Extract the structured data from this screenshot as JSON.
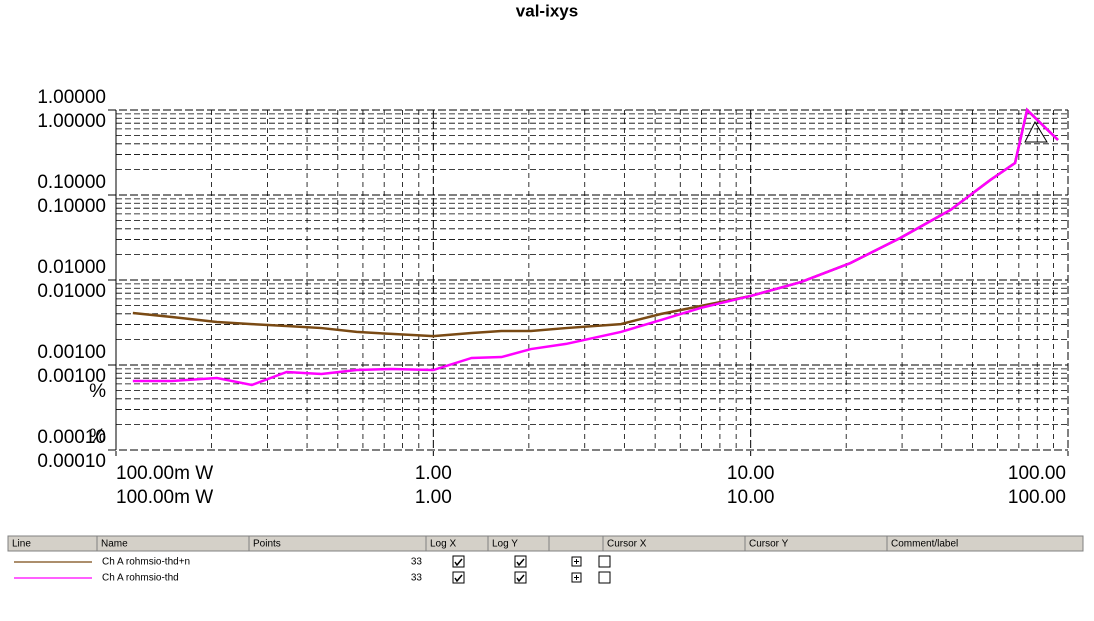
{
  "chart_data": {
    "type": "line",
    "title": "val-ixys",
    "y_unit": "%",
    "log_x": true,
    "log_y": true,
    "grid": true,
    "xlim": [
      0.1,
      100
    ],
    "ylim": [
      0.0001,
      1
    ],
    "xticks": [
      {
        "value": 0.1,
        "label": "100.00m W"
      },
      {
        "value": 1,
        "label": "1.00"
      },
      {
        "value": 10,
        "label": "10.00"
      },
      {
        "value": 100,
        "label": "100.00"
      }
    ],
    "yticks": [
      {
        "value": 1,
        "label": "1.00000"
      },
      {
        "value": 0.1,
        "label": "0.10000"
      },
      {
        "value": 0.01,
        "label": "0.01000"
      },
      {
        "value": 0.001,
        "label": "0.00100"
      },
      {
        "value": 0.0001,
        "label": "0.00010"
      }
    ],
    "x": [
      0.113,
      0.15,
      0.208,
      0.268,
      0.345,
      0.444,
      0.573,
      0.738,
      1.0,
      1.32,
      1.64,
      2.03,
      2.62,
      3.9,
      5.21,
      6.96,
      10.0,
      14.4,
      20.6,
      29.6,
      42.6,
      56.9,
      68.1,
      74.3,
      93.0
    ],
    "series": [
      {
        "name": "Ch A rohmsio-thd+n",
        "color": "#7a4a14",
        "values": [
          0.00409,
          0.00367,
          0.00321,
          0.00303,
          0.00288,
          0.00272,
          0.00245,
          0.00232,
          0.00219,
          0.00238,
          0.00251,
          0.00251,
          0.00272,
          0.00303,
          0.00398,
          0.00494,
          0.00649,
          0.00946,
          0.0158,
          0.0312,
          0.0667,
          0.15,
          0.238,
          1.0,
          0.444
        ]
      },
      {
        "name": "Ch A rohmsio-thd",
        "color": "#ff00ff",
        "values": [
          0.000649,
          0.000649,
          0.000703,
          0.000582,
          0.000828,
          0.000784,
          0.000873,
          0.000897,
          0.000873,
          0.00121,
          0.00124,
          0.00154,
          0.00177,
          0.00245,
          0.00338,
          0.00469,
          0.00649,
          0.00946,
          0.0158,
          0.0312,
          0.0667,
          0.15,
          0.238,
          1.0,
          0.444
        ]
      }
    ]
  },
  "legend_table": {
    "headers": [
      "Line",
      "Name",
      "Points",
      "Log X",
      "Log Y",
      "Cursor X",
      "Cursor Y",
      "Comment/label"
    ],
    "points": [
      "33",
      "33"
    ]
  }
}
